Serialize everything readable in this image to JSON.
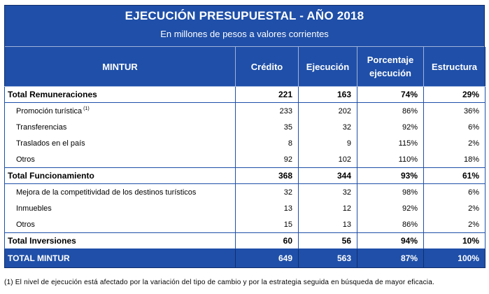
{
  "header": {
    "title": "EJECUCIÓN PRESUPUESTAL - AÑO 2018",
    "subtitle": "En millones de pesos a valores corrientes"
  },
  "columns": {
    "entity": "MINTUR",
    "credito": "Crédito",
    "ejecucion": "Ejecución",
    "porcentaje_line1": "Porcentaje",
    "porcentaje_line2": "ejecución",
    "estructura": "Estructura"
  },
  "rows": [
    {
      "label": "Total Remuneraciones",
      "note": "",
      "credito": "221",
      "ejecucion": "163",
      "porcentaje": "74%",
      "estructura": "29%"
    },
    {
      "label": "Promoción turística",
      "note": "(1)",
      "credito": "233",
      "ejecucion": "202",
      "porcentaje": "86%",
      "estructura": "36%"
    },
    {
      "label": "Transferencias",
      "note": "",
      "credito": "35",
      "ejecucion": "32",
      "porcentaje": "92%",
      "estructura": "6%"
    },
    {
      "label": "Traslados en el país",
      "note": "",
      "credito": "8",
      "ejecucion": "9",
      "porcentaje": "115%",
      "estructura": "2%"
    },
    {
      "label": "Otros",
      "note": "",
      "credito": "92",
      "ejecucion": "102",
      "porcentaje": "110%",
      "estructura": "18%"
    },
    {
      "label": "Total Funcionamiento",
      "note": "",
      "credito": "368",
      "ejecucion": "344",
      "porcentaje": "93%",
      "estructura": "61%"
    },
    {
      "label": "Mejora de la competitividad de los destinos turísticos",
      "note": "",
      "credito": "32",
      "ejecucion": "32",
      "porcentaje": "98%",
      "estructura": "6%"
    },
    {
      "label": "Inmuebles",
      "note": "",
      "credito": "13",
      "ejecucion": "12",
      "porcentaje": "92%",
      "estructura": "2%"
    },
    {
      "label": "Otros",
      "note": "",
      "credito": "15",
      "ejecucion": "13",
      "porcentaje": "86%",
      "estructura": "2%"
    },
    {
      "label": "Total Inversiones",
      "note": "",
      "credito": "60",
      "ejecucion": "56",
      "porcentaje": "94%",
      "estructura": "10%"
    },
    {
      "label": "TOTAL MINTUR",
      "note": "",
      "credito": "649",
      "ejecucion": "563",
      "porcentaje": "87%",
      "estructura": "100%"
    }
  ],
  "footnote": "(1) El nivel de ejecución está afectado por la variación del tipo de cambio y por la estrategia seguida en búsqueda de mayor eficacia.",
  "colors": {
    "header_blue": "#1f4fa8",
    "text": "#000000",
    "header_text": "#ffffff"
  }
}
